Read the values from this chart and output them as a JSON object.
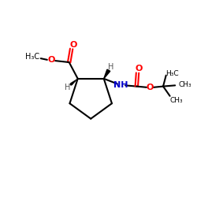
{
  "bg_color": "#ffffff",
  "bond_color": "#000000",
  "oxygen_color": "#ff0000",
  "nitrogen_color": "#0000cc",
  "hydrogen_color": "#555555",
  "line_width": 1.5,
  "font_size": 7.0,
  "fig_size": [
    2.5,
    2.5
  ],
  "dpi": 100,
  "xlim": [
    0,
    10
  ],
  "ylim": [
    0,
    10
  ]
}
